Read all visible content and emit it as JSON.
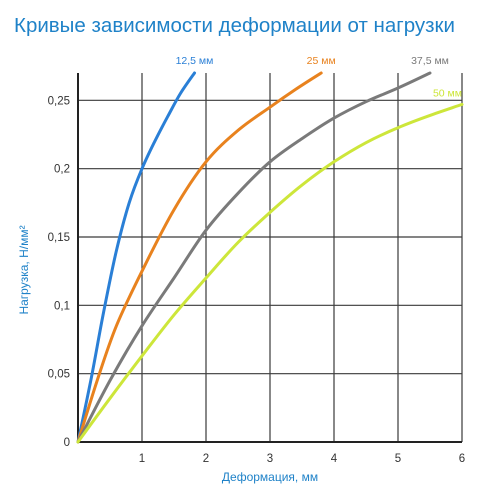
{
  "chart_data": {
    "type": "line",
    "title": "Кривые зависимости деформации от нагрузки",
    "xlabel": "Деформация, мм",
    "ylabel": "Нагрузка, Н/мм²",
    "xlim": [
      0,
      6
    ],
    "ylim": [
      0,
      0.27
    ],
    "xticks": [
      1,
      2,
      3,
      4,
      5,
      6
    ],
    "xtick_labels": [
      "1",
      "2",
      "3",
      "4",
      "5",
      "6"
    ],
    "yticks": [
      0,
      0.05,
      0.1,
      0.15,
      0.2,
      0.25
    ],
    "ytick_labels": [
      "0",
      "0,05",
      "0,1",
      "0,15",
      "0,2",
      "0,25"
    ],
    "grid": true,
    "series": [
      {
        "name": "12,5 мм",
        "color": "#2a7fd6",
        "x": [
          0,
          0.2,
          0.4,
          0.6,
          0.8,
          1.0,
          1.2,
          1.4,
          1.6,
          1.82
        ],
        "y": [
          0,
          0.045,
          0.095,
          0.14,
          0.175,
          0.2,
          0.22,
          0.238,
          0.255,
          0.27
        ]
      },
      {
        "name": "25 мм",
        "color": "#e8821e",
        "x": [
          0,
          0.3,
          0.6,
          1.0,
          1.5,
          2.0,
          2.5,
          3.0,
          3.4,
          3.8
        ],
        "y": [
          0,
          0.045,
          0.085,
          0.125,
          0.17,
          0.205,
          0.228,
          0.245,
          0.258,
          0.27
        ]
      },
      {
        "name": "37,5 мм",
        "color": "#7a7a7a",
        "x": [
          0,
          0.5,
          1.0,
          1.5,
          2.0,
          2.5,
          3.0,
          3.5,
          4.0,
          4.5,
          5.0,
          5.5
        ],
        "y": [
          0,
          0.045,
          0.085,
          0.12,
          0.155,
          0.182,
          0.205,
          0.222,
          0.237,
          0.249,
          0.259,
          0.27
        ]
      },
      {
        "name": "50 мм",
        "color": "#cde63a",
        "x": [
          0,
          0.5,
          1.0,
          1.5,
          2.0,
          2.5,
          3.0,
          3.5,
          4.0,
          4.5,
          5.0,
          5.5,
          6.0
        ],
        "y": [
          0,
          0.032,
          0.063,
          0.093,
          0.12,
          0.146,
          0.168,
          0.188,
          0.205,
          0.219,
          0.23,
          0.239,
          0.247
        ]
      }
    ]
  }
}
